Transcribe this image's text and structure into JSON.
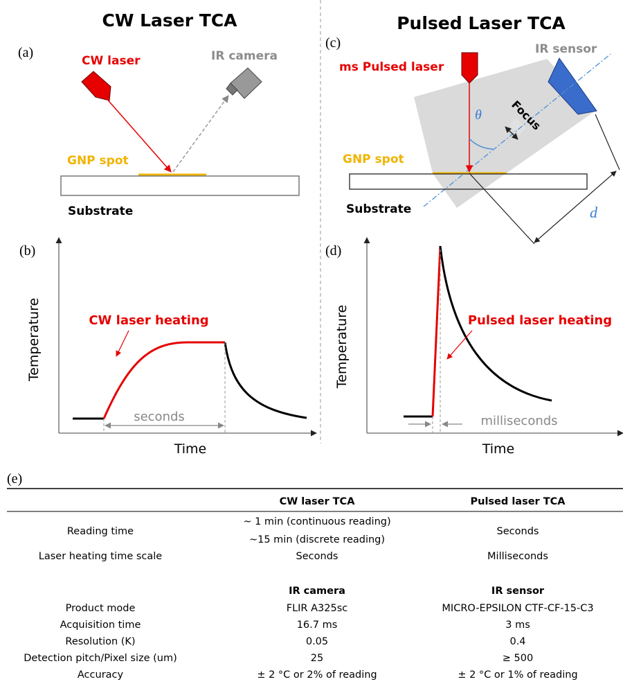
{
  "panels": {
    "cw": {
      "title": "CW Laser TCA",
      "diagram": {
        "label": "(a)",
        "laser": "CW laser",
        "detector": "IR camera",
        "spot": "GNP spot",
        "substrate": "Substrate"
      },
      "plot": {
        "label": "(b)",
        "y_label": "Temperature",
        "x_label": "Time",
        "annotation": "CW laser heating",
        "duration": "seconds"
      }
    },
    "pulsed": {
      "title": "Pulsed Laser TCA",
      "diagram": {
        "label": "(c)",
        "laser": "ms Pulsed laser",
        "detector": "IR sensor",
        "angle": "θ",
        "focus": "Focus",
        "spot": "GNP spot",
        "substrate": "Substrate",
        "distance": "d"
      },
      "plot": {
        "label": "(d)",
        "y_label": "Temperature",
        "x_label": "Time",
        "annotation": "Pulsed laser heating",
        "duration": "milliseconds"
      }
    }
  },
  "table": {
    "label": "(e)",
    "header": [
      "CW laser TCA",
      "Pulsed laser TCA"
    ],
    "rows": [
      [
        "Reading time",
        [
          "~ 1 min (continuous reading)",
          "~15 min (discrete reading)"
        ],
        "Seconds"
      ],
      [
        "Laser heating time scale",
        "Seconds",
        "Milliseconds"
      ]
    ],
    "subheader": [
      "IR camera",
      "IR sensor"
    ],
    "device_rows": [
      [
        "Product mode",
        "FLIR A325sc",
        "MICRO-EPSILON CTF-CF-15-C3"
      ],
      [
        "Acquisition time",
        "16.7 ms",
        "3 ms"
      ],
      [
        "Resolution (K)",
        "0.05",
        "0.4"
      ],
      [
        "Detection pitch/Pixel size (um)",
        "25",
        "≥  500"
      ],
      [
        "Accuracy",
        "±  2 °C or 2% of reading",
        "±  2 °C or 1% of reading"
      ]
    ]
  }
}
